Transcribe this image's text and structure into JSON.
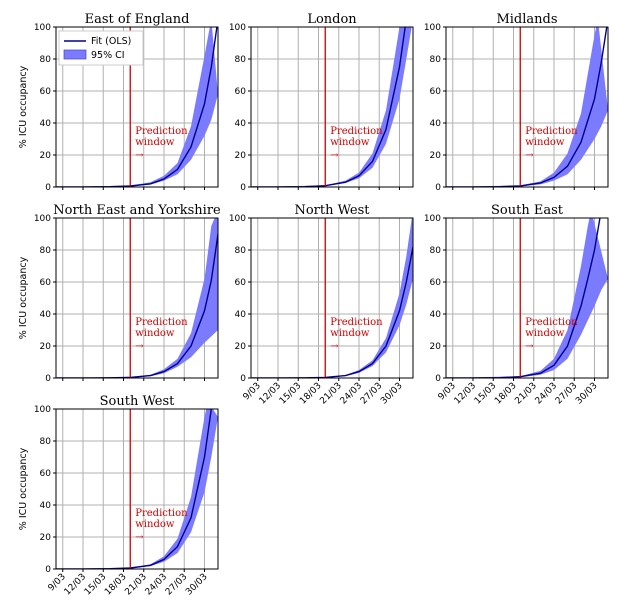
{
  "chart_data": {
    "type": "line",
    "layout": "3x3 grid of small multiples, 7 panels",
    "ylabel": "% ICU occupancy",
    "ylim": [
      0,
      100
    ],
    "yticks": [
      0,
      20,
      40,
      60,
      80,
      100
    ],
    "xtick_labels": [
      "9/03",
      "12/03",
      "15/03",
      "18/03",
      "21/03",
      "24/03",
      "27/03",
      "30/03"
    ],
    "xtick_days": [
      9,
      12,
      15,
      18,
      21,
      24,
      27,
      30
    ],
    "xlim_days": [
      8,
      32
    ],
    "prediction_line_day": 19,
    "prediction_label": "Prediction\nwindow",
    "prediction_arrow": "→",
    "legend": {
      "fit": "Fit (OLS)",
      "ci": "95% CI"
    },
    "colors": {
      "fit": "#00008b",
      "ci_fill": "#7b7bff",
      "prediction": "#cc0000",
      "grid": "#b0b0b0"
    },
    "panels": [
      {
        "name": "East of England",
        "fit": [
          [
            8,
            0
          ],
          [
            12,
            0
          ],
          [
            16,
            0.2
          ],
          [
            19,
            0.6
          ],
          [
            22,
            2
          ],
          [
            24,
            5
          ],
          [
            26,
            11
          ],
          [
            28,
            25
          ],
          [
            30,
            52
          ],
          [
            31,
            75
          ],
          [
            32,
            105
          ]
        ],
        "ci_low": [
          [
            8,
            0
          ],
          [
            19,
            0.4
          ],
          [
            22,
            1.5
          ],
          [
            24,
            4
          ],
          [
            26,
            8
          ],
          [
            28,
            17
          ],
          [
            30,
            32
          ],
          [
            31,
            42
          ],
          [
            32,
            58
          ]
        ],
        "ci_high": [
          [
            8,
            0
          ],
          [
            19,
            0.9
          ],
          [
            22,
            3
          ],
          [
            24,
            7
          ],
          [
            26,
            15
          ],
          [
            28,
            38
          ],
          [
            30,
            82
          ],
          [
            31,
            105
          ]
        ]
      },
      {
        "name": "London",
        "fit": [
          [
            8,
            0
          ],
          [
            12,
            0
          ],
          [
            16,
            0.2
          ],
          [
            19,
            0.8
          ],
          [
            22,
            3
          ],
          [
            24,
            7
          ],
          [
            26,
            16
          ],
          [
            28,
            36
          ],
          [
            30,
            75
          ],
          [
            31,
            105
          ]
        ],
        "ci_low": [
          [
            8,
            0
          ],
          [
            19,
            0.6
          ],
          [
            22,
            2.5
          ],
          [
            24,
            5.5
          ],
          [
            26,
            12
          ],
          [
            28,
            27
          ],
          [
            30,
            55
          ],
          [
            31,
            80
          ],
          [
            32,
            105
          ]
        ],
        "ci_high": [
          [
            8,
            0
          ],
          [
            19,
            1
          ],
          [
            22,
            4
          ],
          [
            24,
            9
          ],
          [
            26,
            21
          ],
          [
            28,
            48
          ],
          [
            30,
            100
          ],
          [
            30.5,
            105
          ]
        ]
      },
      {
        "name": "Midlands",
        "fit": [
          [
            8,
            0
          ],
          [
            12,
            0
          ],
          [
            16,
            0.2
          ],
          [
            19,
            0.7
          ],
          [
            22,
            2.5
          ],
          [
            24,
            6
          ],
          [
            26,
            13
          ],
          [
            28,
            28
          ],
          [
            30,
            55
          ],
          [
            31,
            78
          ],
          [
            32,
            105
          ]
        ],
        "ci_low": [
          [
            8,
            0
          ],
          [
            19,
            0.4
          ],
          [
            22,
            1.6
          ],
          [
            24,
            4
          ],
          [
            26,
            8
          ],
          [
            28,
            17
          ],
          [
            30,
            30
          ],
          [
            31,
            38
          ],
          [
            32,
            48
          ]
        ],
        "ci_high": [
          [
            8,
            0
          ],
          [
            19,
            1
          ],
          [
            22,
            3.5
          ],
          [
            24,
            9
          ],
          [
            26,
            21
          ],
          [
            28,
            46
          ],
          [
            30,
            95
          ],
          [
            30.5,
            105
          ]
        ]
      },
      {
        "name": "North East and Yorkshire",
        "fit": [
          [
            8,
            0
          ],
          [
            12,
            0
          ],
          [
            16,
            0.1
          ],
          [
            19,
            0.4
          ],
          [
            22,
            1.5
          ],
          [
            24,
            4
          ],
          [
            26,
            9
          ],
          [
            28,
            20
          ],
          [
            30,
            42
          ],
          [
            31,
            61
          ],
          [
            32,
            90
          ]
        ],
        "ci_low": [
          [
            8,
            0
          ],
          [
            19,
            0.3
          ],
          [
            22,
            1.1
          ],
          [
            24,
            3
          ],
          [
            26,
            7
          ],
          [
            28,
            13
          ],
          [
            30,
            22
          ],
          [
            31,
            26
          ],
          [
            32,
            30
          ]
        ],
        "ci_high": [
          [
            8,
            0
          ],
          [
            19,
            0.6
          ],
          [
            22,
            2
          ],
          [
            24,
            5.5
          ],
          [
            26,
            12
          ],
          [
            28,
            28
          ],
          [
            30,
            62
          ],
          [
            31,
            95
          ],
          [
            32,
            105
          ]
        ]
      },
      {
        "name": "North West",
        "fit": [
          [
            8,
            0
          ],
          [
            12,
            0
          ],
          [
            16,
            0.1
          ],
          [
            19,
            0.4
          ],
          [
            22,
            1.5
          ],
          [
            24,
            4
          ],
          [
            26,
            9
          ],
          [
            28,
            20
          ],
          [
            30,
            42
          ],
          [
            31,
            60
          ],
          [
            32,
            82
          ]
        ],
        "ci_low": [
          [
            8,
            0
          ],
          [
            19,
            0.3
          ],
          [
            22,
            1.2
          ],
          [
            24,
            3.2
          ],
          [
            26,
            7.5
          ],
          [
            28,
            16
          ],
          [
            30,
            33
          ],
          [
            31,
            46
          ],
          [
            32,
            62
          ]
        ],
        "ci_high": [
          [
            8,
            0
          ],
          [
            19,
            0.5
          ],
          [
            22,
            1.8
          ],
          [
            24,
            5
          ],
          [
            26,
            11
          ],
          [
            28,
            25
          ],
          [
            30,
            53
          ],
          [
            31,
            76
          ],
          [
            32,
            105
          ]
        ]
      },
      {
        "name": "South East",
        "fit": [
          [
            8,
            0
          ],
          [
            12,
            0
          ],
          [
            16,
            0.2
          ],
          [
            19,
            0.8
          ],
          [
            22,
            3
          ],
          [
            24,
            8
          ],
          [
            26,
            20
          ],
          [
            28,
            45
          ],
          [
            29,
            62
          ],
          [
            30,
            80
          ],
          [
            31,
            105
          ]
        ],
        "ci_low": [
          [
            8,
            0
          ],
          [
            19,
            0.5
          ],
          [
            22,
            2
          ],
          [
            24,
            5
          ],
          [
            26,
            12
          ],
          [
            28,
            27
          ],
          [
            30,
            45
          ],
          [
            31,
            55
          ],
          [
            32,
            62
          ]
        ],
        "ci_high": [
          [
            8,
            0
          ],
          [
            19,
            1.1
          ],
          [
            22,
            4.5
          ],
          [
            24,
            12
          ],
          [
            26,
            30
          ],
          [
            28,
            70
          ],
          [
            29,
            95
          ],
          [
            29.5,
            105
          ]
        ]
      },
      {
        "name": "South West",
        "fit": [
          [
            8,
            0
          ],
          [
            12,
            0
          ],
          [
            16,
            0.2
          ],
          [
            19,
            0.6
          ],
          [
            22,
            2.3
          ],
          [
            24,
            6
          ],
          [
            26,
            14
          ],
          [
            28,
            32
          ],
          [
            30,
            70
          ],
          [
            31,
            100
          ],
          [
            31.5,
            105
          ]
        ],
        "ci_low": [
          [
            8,
            0
          ],
          [
            19,
            0.5
          ],
          [
            22,
            1.8
          ],
          [
            24,
            4.5
          ],
          [
            26,
            10
          ],
          [
            28,
            23
          ],
          [
            30,
            48
          ],
          [
            31,
            70
          ],
          [
            32,
            95
          ]
        ],
        "ci_high": [
          [
            8,
            0
          ],
          [
            19,
            0.8
          ],
          [
            22,
            3
          ],
          [
            24,
            8
          ],
          [
            26,
            19
          ],
          [
            28,
            45
          ],
          [
            30,
            95
          ],
          [
            30.5,
            105
          ]
        ]
      }
    ]
  }
}
